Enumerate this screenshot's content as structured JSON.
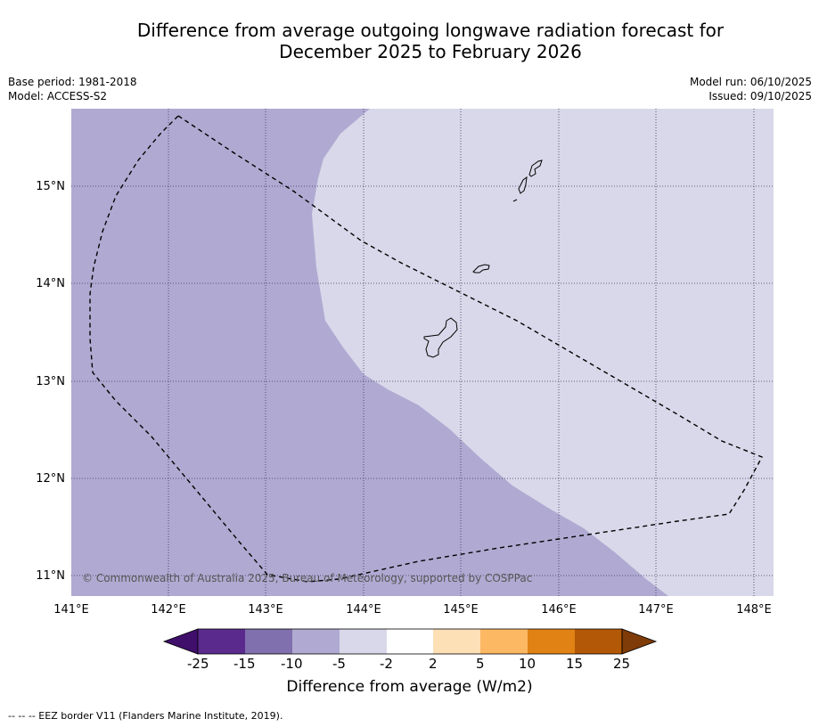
{
  "title_line1": "Difference from average outgoing longwave radiation forecast for",
  "title_line2": "December 2025 to February 2026",
  "base_period": "Base period: 1981-2018",
  "model": "Model: ACCESS-S2",
  "model_run": "Model run: 06/10/2025",
  "issued": "Issued: 09/10/2025",
  "copyright": "© Commonwealth of Australia 2025, Bureau of Meteorology, supported by COSPPac",
  "lon_ticks": [
    "141°E",
    "142°E",
    "143°E",
    "144°E",
    "145°E",
    "146°E",
    "147°E",
    "148°E"
  ],
  "lat_ticks": [
    "15°N",
    "14°N",
    "13°N",
    "12°N",
    "11°N"
  ],
  "colors": {
    "region_west": "#b0aad2",
    "region_east": "#d8d8ea",
    "grid": "#333355"
  },
  "legend": {
    "title": "Difference from average (W/m2)",
    "labels": [
      "-25",
      "-15",
      "-10",
      "-5",
      "-2",
      "2",
      "5",
      "10",
      "15",
      "25"
    ],
    "colors": [
      "#3f0f6b",
      "#5a2a8d",
      "#8070ae",
      "#b0aad2",
      "#d8d8ea",
      "#ffffff",
      "#fde0b6",
      "#fdb863",
      "#e08214",
      "#b35806",
      "#7f3b08"
    ]
  },
  "footnote": "--  --  -- EEZ border V11 (Flanders Marine Institute, 2019)."
}
